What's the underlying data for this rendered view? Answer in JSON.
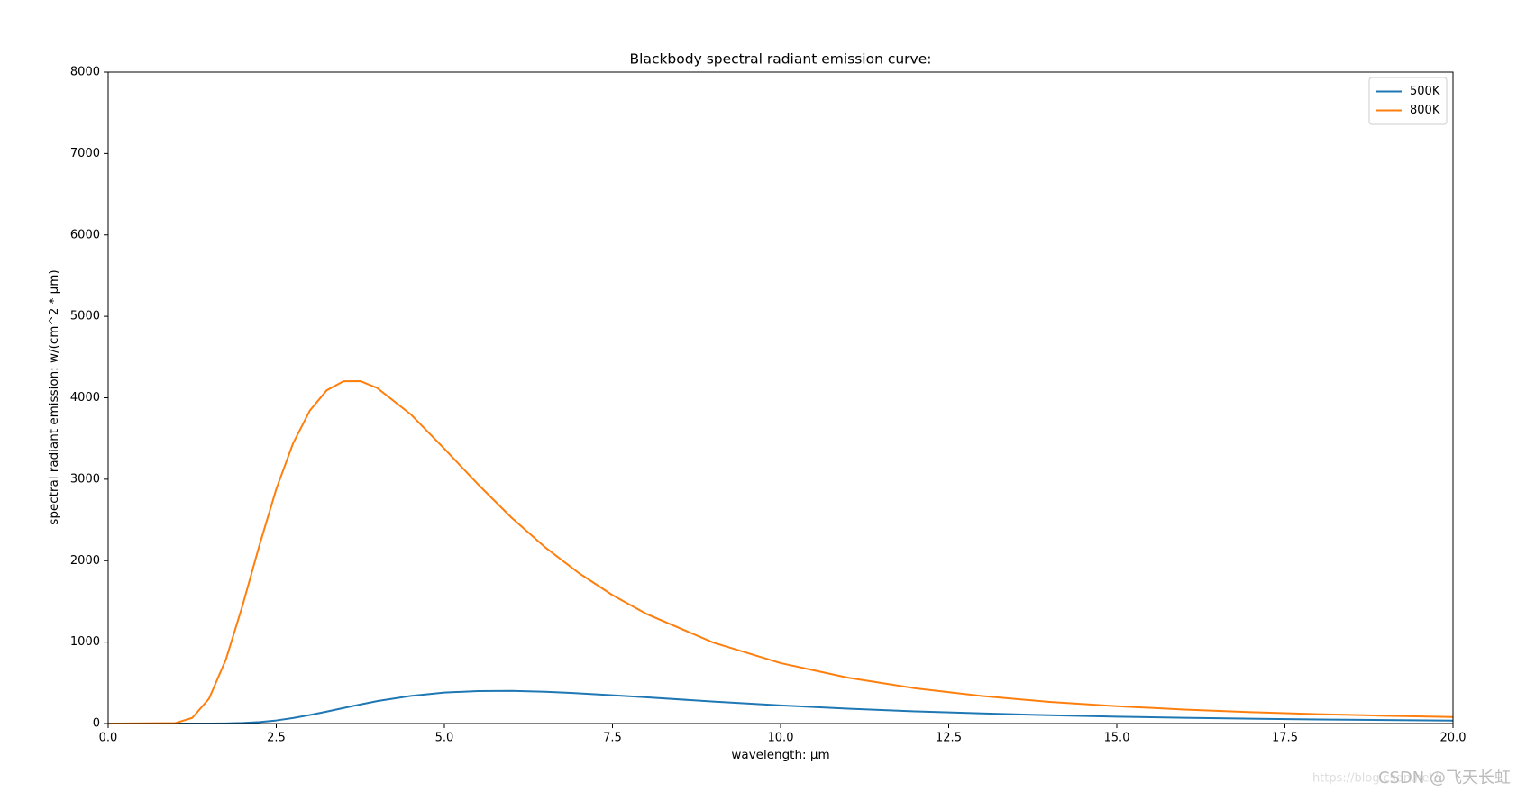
{
  "chart_data": {
    "type": "line",
    "title": "Blackbody spectral radiant emission curve:",
    "x_label": "wavelength: μm",
    "y_label": "spectral radiant emission: w/(cm^2 * μm)",
    "x": [
      0,
      1,
      1.25,
      1.5,
      1.75,
      2,
      2.25,
      2.5,
      2.75,
      3,
      3.25,
      3.5,
      3.75,
      4,
      4.5,
      5,
      5.5,
      6,
      6.5,
      7,
      7.5,
      8,
      9,
      10,
      11,
      12,
      13,
      14,
      15,
      16,
      17,
      18,
      19,
      20
    ],
    "series": [
      {
        "name": "500K",
        "color": "#1f77b4",
        "values": [
          0,
          0,
          0,
          0.2,
          1.7,
          6.6,
          18,
          38,
          68,
          105,
          147,
          191,
          234,
          275,
          339,
          380,
          399,
          401,
          390,
          371,
          347,
          322,
          270,
          223,
          183,
          150,
          124,
          102,
          85,
          71,
          59,
          50,
          43,
          36
        ]
      },
      {
        "name": "800K",
        "color": "#ff7f0e",
        "values": [
          0,
          6,
          69,
          306,
          784,
          1453,
          2190,
          2879,
          3441,
          3844,
          4092,
          4203,
          4205,
          4121,
          3797,
          3374,
          2938,
          2527,
          2163,
          1848,
          1577,
          1348,
          994,
          742,
          563,
          433,
          337,
          266,
          213,
          172,
          140,
          115,
          96,
          80
        ]
      }
    ],
    "xlim": [
      0,
      20
    ],
    "xticks": [
      {
        "value": 0,
        "label": "0.0"
      },
      2.5,
      {
        "value": 5,
        "label": "5.0"
      },
      7.5,
      {
        "value": 10,
        "label": "10.0"
      },
      12.5,
      {
        "value": 15,
        "label": "15.0"
      },
      17.5,
      {
        "value": 20,
        "label": "20.0"
      }
    ],
    "ylim": [
      0,
      8000
    ],
    "yticks": [
      0,
      1000,
      2000,
      3000,
      4000,
      5000,
      6000,
      7000,
      8000
    ],
    "legend": "upper right",
    "grid": false,
    "watermark": "CSDN @飞天长虹",
    "watermark_url": "https://blog.csdn.net/"
  }
}
